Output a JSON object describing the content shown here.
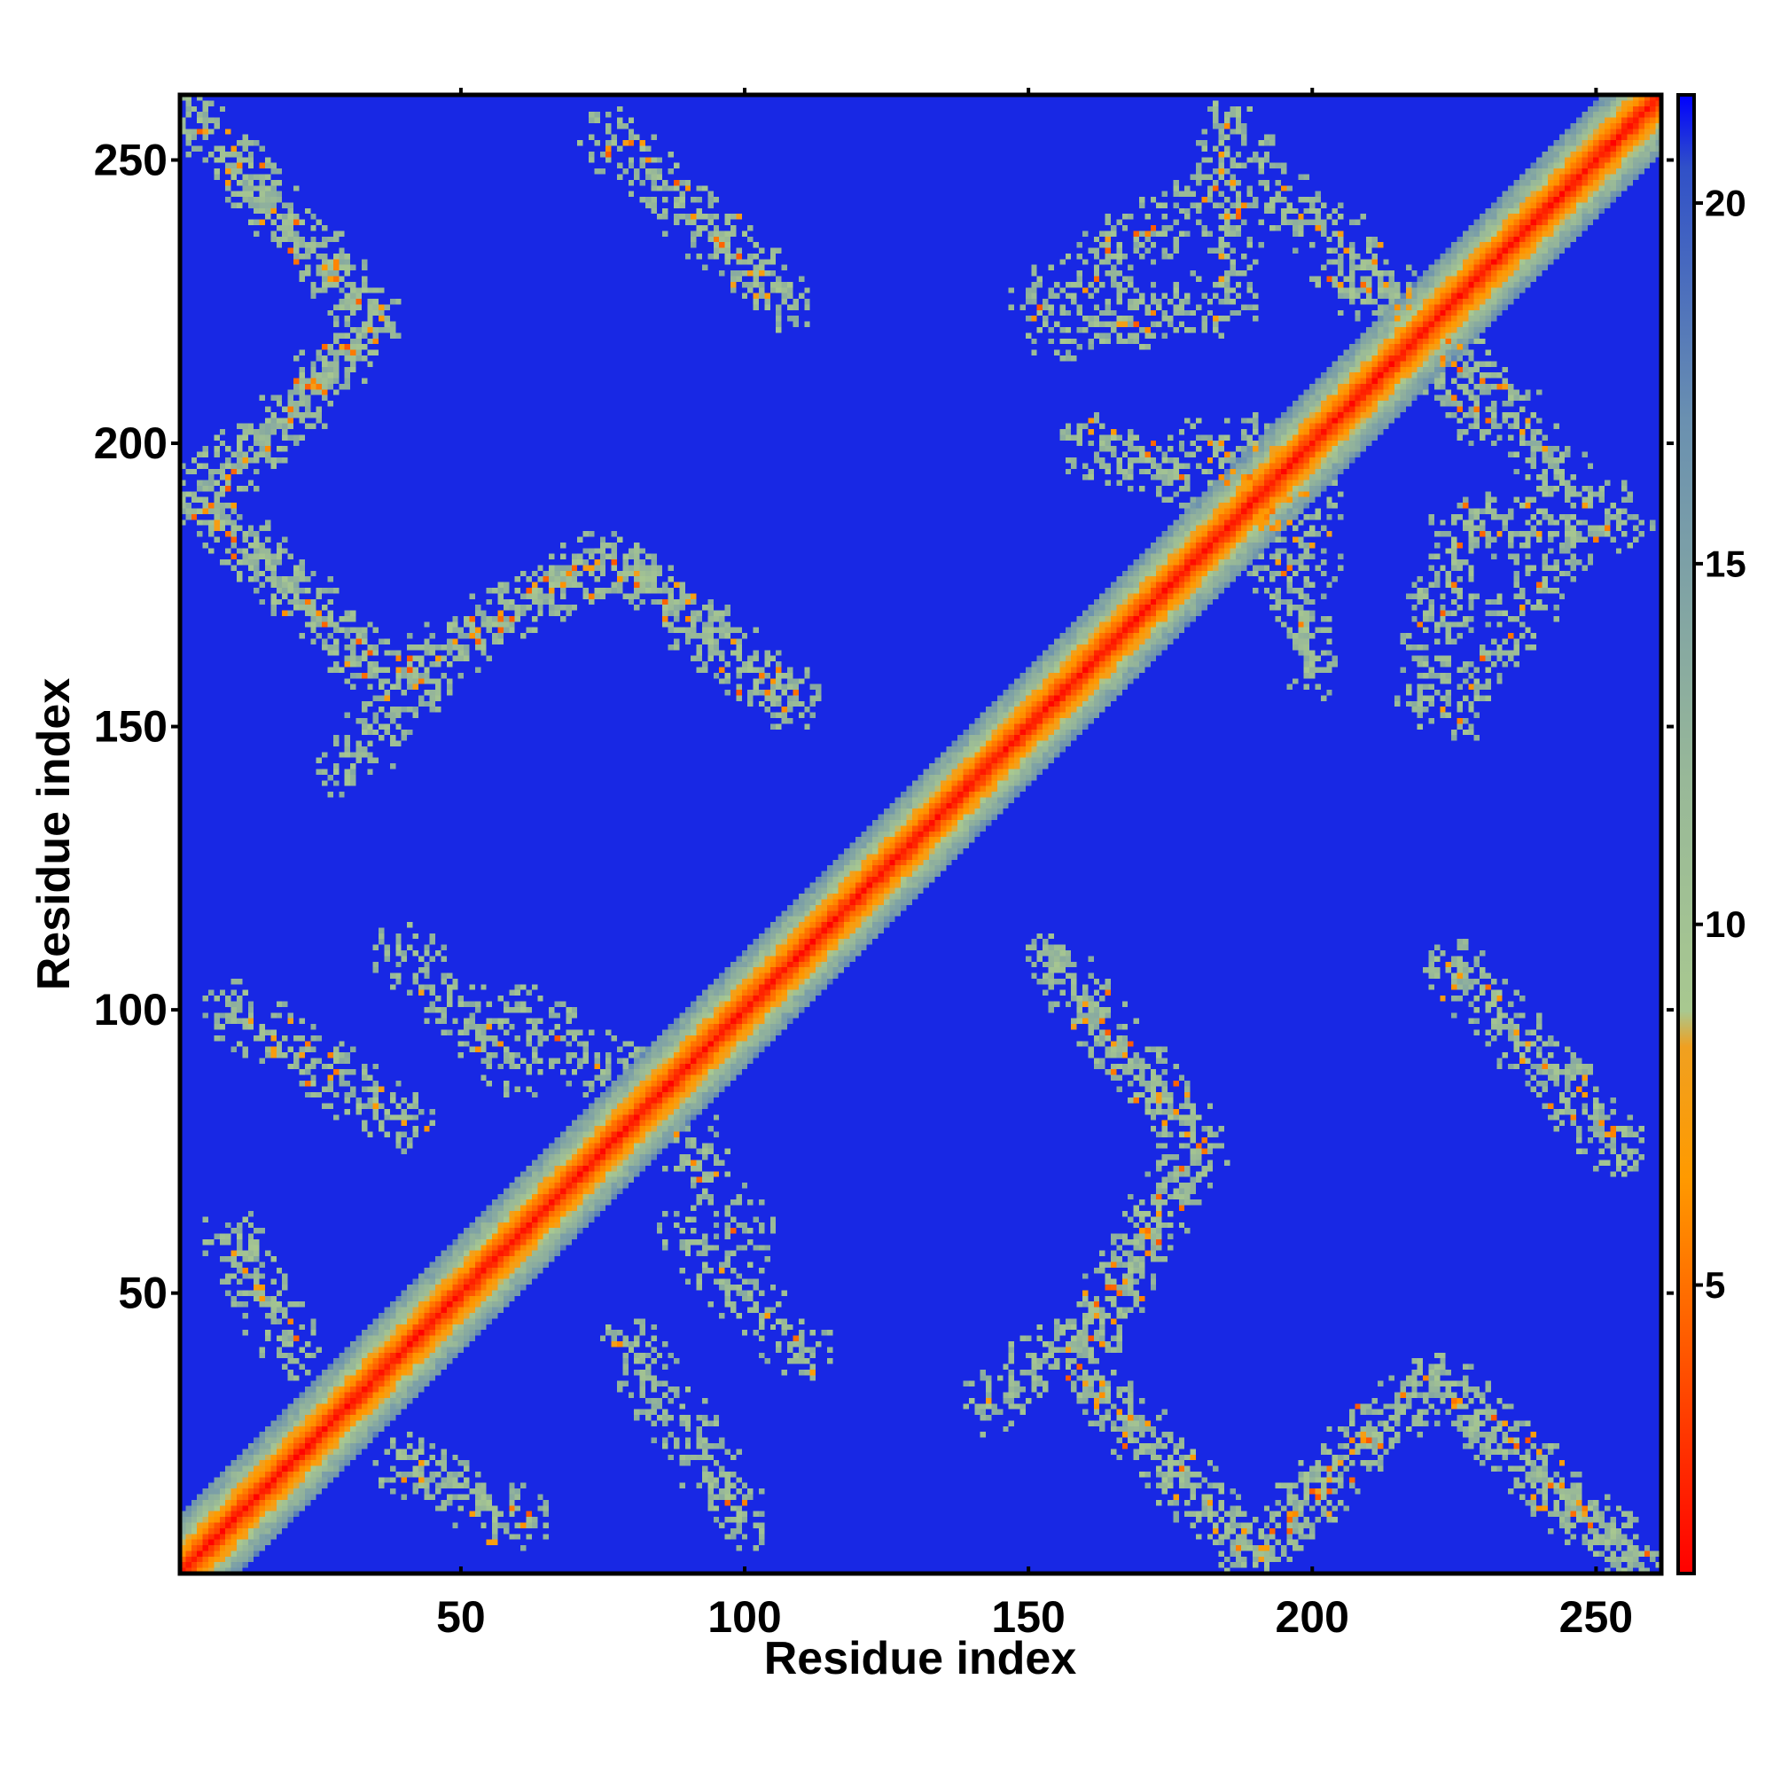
{
  "chart_data": {
    "type": "heatmap",
    "title": "",
    "xlabel": "Residue index",
    "ylabel": "Residue index",
    "n_residues": 261,
    "xlim": [
      1,
      261
    ],
    "ylim": [
      1,
      261
    ],
    "xticks": [
      50,
      100,
      150,
      200,
      250
    ],
    "xtick_labels": [
      "50",
      "100",
      "150",
      "200",
      "250"
    ],
    "yticks": [
      50,
      100,
      150,
      200,
      250
    ],
    "ytick_labels": [
      "50",
      "100",
      "150",
      "200",
      "250"
    ],
    "colorbar": {
      "range": [
        1,
        21.5
      ],
      "ticks": [
        5,
        10,
        15,
        20
      ],
      "tick_labels": [
        "5",
        "10",
        "15",
        "20"
      ],
      "stops": [
        {
          "value": 1,
          "color": "#ff0000"
        },
        {
          "value": 4,
          "color": "#ff5500"
        },
        {
          "value": 6.5,
          "color": "#ff9a00"
        },
        {
          "value": 8.3,
          "color": "#f0a020"
        },
        {
          "value": 8.8,
          "color": "#a8c890"
        },
        {
          "value": 12,
          "color": "#98b898"
        },
        {
          "value": 17,
          "color": "#6a90b0"
        },
        {
          "value": 20.5,
          "color": "#3050c8"
        },
        {
          "value": 21.5,
          "color": "#0000ff"
        }
      ]
    },
    "background_value": 21,
    "diagonal_band": {
      "center_value": 1,
      "half_width_residues": 10
    },
    "contact_bands": [
      {
        "from": [
          3,
          256
        ],
        "to": [
          35,
          222
        ],
        "strength": 0.85
      },
      {
        "from": [
          35,
          222
        ],
        "to": [
          22,
          207
        ],
        "strength": 0.85
      },
      {
        "from": [
          22,
          207
        ],
        "to": [
          3,
          190
        ],
        "strength": 0.85
      },
      {
        "from": [
          3,
          190
        ],
        "to": [
          38,
          158
        ],
        "strength": 0.85
      },
      {
        "from": [
          38,
          158
        ],
        "to": [
          76,
          180
        ],
        "strength": 0.85
      },
      {
        "from": [
          76,
          180
        ],
        "to": [
          108,
          155
        ],
        "strength": 0.8
      },
      {
        "from": [
          76,
          254
        ],
        "to": [
          107,
          225
        ],
        "strength": 0.75
      },
      {
        "from": [
          30,
          143
        ],
        "to": [
          45,
          160
        ],
        "strength": 0.55
      },
      {
        "from": [
          160,
          200
        ],
        "to": [
          195,
          190
        ],
        "strength": 0.6
      },
      {
        "from": [
          190,
          250
        ],
        "to": [
          152,
          225
        ],
        "strength": 0.55
      },
      {
        "from": [
          205,
          230
        ],
        "to": [
          232,
          210
        ],
        "strength": 0.75
      },
      {
        "from": [
          232,
          210
        ],
        "to": [
          245,
          192
        ],
        "strength": 0.6
      },
      {
        "from": [
          225,
          185
        ],
        "to": [
          255,
          186
        ],
        "strength": 0.6
      },
      {
        "from": [
          225,
          185
        ],
        "to": [
          220,
          155
        ],
        "strength": 0.55
      },
      {
        "from": [
          190,
          200
        ],
        "to": [
          200,
          180
        ],
        "strength": 0.65
      },
      {
        "from": [
          256,
          3
        ],
        "to": [
          222,
          35
        ],
        "strength": 0.85
      },
      {
        "from": [
          222,
          35
        ],
        "to": [
          207,
          22
        ],
        "strength": 0.85
      },
      {
        "from": [
          207,
          22
        ],
        "to": [
          190,
          3
        ],
        "strength": 0.85
      },
      {
        "from": [
          190,
          3
        ],
        "to": [
          158,
          38
        ],
        "strength": 0.85
      },
      {
        "from": [
          158,
          38
        ],
        "to": [
          180,
          76
        ],
        "strength": 0.85
      },
      {
        "from": [
          180,
          76
        ],
        "to": [
          155,
          108
        ],
        "strength": 0.8
      },
      {
        "from": [
          254,
          76
        ],
        "to": [
          225,
          107
        ],
        "strength": 0.75
      },
      {
        "from": [
          143,
          30
        ],
        "to": [
          160,
          45
        ],
        "strength": 0.55
      },
      {
        "from": [
          200,
          160
        ],
        "to": [
          190,
          195
        ],
        "strength": 0.6
      },
      {
        "from": [
          250,
          190
        ],
        "to": [
          225,
          152
        ],
        "strength": 0.55
      },
      {
        "from": [
          230,
          205
        ],
        "to": [
          210,
          232
        ],
        "strength": 0.75
      },
      {
        "from": [
          210,
          232
        ],
        "to": [
          192,
          245
        ],
        "strength": 0.6
      },
      {
        "from": [
          185,
          225
        ],
        "to": [
          186,
          255
        ],
        "strength": 0.6
      },
      {
        "from": [
          185,
          225
        ],
        "to": [
          155,
          220
        ],
        "strength": 0.55
      },
      {
        "from": [
          200,
          190
        ],
        "to": [
          180,
          200
        ],
        "strength": 0.65
      },
      {
        "from": [
          100,
          10
        ],
        "to": [
          80,
          40
        ],
        "strength": 0.55
      },
      {
        "from": [
          10,
          100
        ],
        "to": [
          40,
          80
        ],
        "strength": 0.55
      },
      {
        "from": [
          100,
          60
        ],
        "to": [
          80,
          90
        ],
        "strength": 0.45
      },
      {
        "from": [
          60,
          100
        ],
        "to": [
          90,
          80
        ],
        "strength": 0.45
      },
      {
        "from": [
          40,
          20
        ],
        "to": [
          60,
          10
        ],
        "strength": 0.6
      },
      {
        "from": [
          20,
          40
        ],
        "to": [
          10,
          60
        ],
        "strength": 0.6
      },
      {
        "from": [
          90,
          60
        ],
        "to": [
          110,
          40
        ],
        "strength": 0.55
      },
      {
        "from": [
          60,
          90
        ],
        "to": [
          40,
          110
        ],
        "strength": 0.55
      }
    ]
  }
}
